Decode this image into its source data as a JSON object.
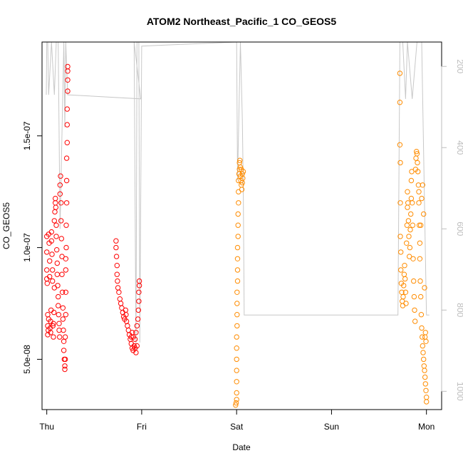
{
  "chart_data": {
    "type": "scatter",
    "title": "ATOM2 Northeast_Pacific_1 CO_GEOS5",
    "xlabel": "Date",
    "ylabel": "CO_GEOS5",
    "x_ticks": [
      "Thu",
      "Fri",
      "Sat",
      "Sun",
      "Mon"
    ],
    "xlim": [
      -0.05,
      4.16
    ],
    "ylim": [
      2.75e-08,
      1.92e-07
    ],
    "y_ticks": [
      "5.0e-08",
      "1.0e-07",
      "1.5e-07"
    ],
    "y_tick_values": [
      5e-08,
      1e-07,
      1.5e-07
    ],
    "y2_ticks": [
      "200",
      "400",
      "600",
      "800",
      "1000"
    ],
    "y2_tick_values": [
      200,
      400,
      600,
      800,
      1000
    ],
    "y2lim": [
      1045,
      140
    ],
    "grid": false,
    "colors": {
      "series1": "#ff0000",
      "series2": "#ff8c00",
      "pressure": "#c8c8c8",
      "right_axis": "#bdbdbd"
    },
    "series": [
      {
        "color": "#ff0000",
        "marker": "open-circle",
        "points": [
          [
            0.0,
            1.05e-07
          ],
          [
            0.0,
            9.8e-08
          ],
          [
            0.0,
            9e-08
          ],
          [
            0.0,
            8.6e-08
          ],
          [
            0.005,
            8.4e-08
          ],
          [
            0.01,
            7e-08
          ],
          [
            0.01,
            6.5e-08
          ],
          [
            0.01,
            6.1e-08
          ],
          [
            0.015,
            6.3e-08
          ],
          [
            0.02,
            6.8e-08
          ],
          [
            0.02,
            1.06e-07
          ],
          [
            0.025,
            1.02e-07
          ],
          [
            0.03,
            9.4e-08
          ],
          [
            0.03,
            8.7e-08
          ],
          [
            0.035,
            6.4e-08
          ],
          [
            0.04,
            6.2e-08
          ],
          [
            0.04,
            6.7e-08
          ],
          [
            0.045,
            7.2e-08
          ],
          [
            0.05,
            1.07e-07
          ],
          [
            0.05,
            1.03e-07
          ],
          [
            0.055,
            9.7e-08
          ],
          [
            0.06,
            9e-08
          ],
          [
            0.06,
            8.5e-08
          ],
          [
            0.065,
            6.5e-08
          ],
          [
            0.07,
            6e-08
          ],
          [
            0.07,
            6.6e-08
          ],
          [
            0.075,
            7.1e-08
          ],
          [
            0.08,
            8.2e-08
          ],
          [
            0.08,
            1.12e-07
          ],
          [
            0.085,
            1.16e-07
          ],
          [
            0.09,
            1.2e-07
          ],
          [
            0.09,
            1.22e-07
          ],
          [
            0.095,
            1.18e-07
          ],
          [
            0.1,
            1.1e-07
          ],
          [
            0.1,
            1.05e-07
          ],
          [
            0.105,
            9.9e-08
          ],
          [
            0.11,
            9.3e-08
          ],
          [
            0.11,
            8.8e-08
          ],
          [
            0.115,
            8.3e-08
          ],
          [
            0.12,
            7.8e-08
          ],
          [
            0.12,
            7.4e-08
          ],
          [
            0.125,
            7e-08
          ],
          [
            0.13,
            6.6e-08
          ],
          [
            0.13,
            6.3e-08
          ],
          [
            0.135,
            6e-08
          ],
          [
            0.14,
            1.24e-07
          ],
          [
            0.14,
            1.28e-07
          ],
          [
            0.145,
            1.32e-07
          ],
          [
            0.15,
            1.2e-07
          ],
          [
            0.15,
            1.12e-07
          ],
          [
            0.155,
            1.04e-07
          ],
          [
            0.16,
            9.6e-08
          ],
          [
            0.16,
            8.8e-08
          ],
          [
            0.165,
            8e-08
          ],
          [
            0.17,
            7.3e-08
          ],
          [
            0.17,
            6.8e-08
          ],
          [
            0.175,
            6.3e-08
          ],
          [
            0.18,
            5.8e-08
          ],
          [
            0.18,
            5.4e-08
          ],
          [
            0.185,
            5e-08
          ],
          [
            0.19,
            4.7e-08
          ],
          [
            0.19,
            4.55e-08
          ],
          [
            0.195,
            5e-08
          ],
          [
            0.195,
            6e-08
          ],
          [
            0.2,
            7e-08
          ],
          [
            0.2,
            8e-08
          ],
          [
            0.2,
            9e-08
          ],
          [
            0.2,
            9.5e-08
          ],
          [
            0.205,
            1e-07
          ],
          [
            0.205,
            1.1e-07
          ],
          [
            0.21,
            1.2e-07
          ],
          [
            0.21,
            1.3e-07
          ],
          [
            0.21,
            1.4e-07
          ],
          [
            0.215,
            1.47e-07
          ],
          [
            0.215,
            1.55e-07
          ],
          [
            0.215,
            1.62e-07
          ],
          [
            0.22,
            1.7e-07
          ],
          [
            0.22,
            1.75e-07
          ],
          [
            0.22,
            1.79e-07
          ],
          [
            0.22,
            1.81e-07
          ],
          [
            0.73,
            1.03e-07
          ],
          [
            0.73,
            1e-07
          ],
          [
            0.735,
            9.6e-08
          ],
          [
            0.74,
            9.2e-08
          ],
          [
            0.74,
            8.8e-08
          ],
          [
            0.745,
            8.5e-08
          ],
          [
            0.75,
            8.2e-08
          ],
          [
            0.76,
            8e-08
          ],
          [
            0.77,
            7.7e-08
          ],
          [
            0.78,
            7.5e-08
          ],
          [
            0.79,
            7.3e-08
          ],
          [
            0.8,
            7.1e-08
          ],
          [
            0.81,
            6.9e-08
          ],
          [
            0.82,
            6.8e-08
          ],
          [
            0.83,
            7.2e-08
          ],
          [
            0.835,
            7e-08
          ],
          [
            0.84,
            6.7e-08
          ],
          [
            0.85,
            6.5e-08
          ],
          [
            0.86,
            6.3e-08
          ],
          [
            0.87,
            6.1e-08
          ],
          [
            0.88,
            5.9e-08
          ],
          [
            0.89,
            5.7e-08
          ],
          [
            0.9,
            5.5e-08
          ],
          [
            0.91,
            5.4e-08
          ],
          [
            0.92,
            5.6e-08
          ],
          [
            0.93,
            5.9e-08
          ],
          [
            0.94,
            6.2e-08
          ],
          [
            0.95,
            6.5e-08
          ],
          [
            0.96,
            6.8e-08
          ],
          [
            0.965,
            7.2e-08
          ],
          [
            0.97,
            7.6e-08
          ],
          [
            0.97,
            8e-08
          ],
          [
            0.975,
            8.3e-08
          ],
          [
            0.975,
            8.5e-08
          ],
          [
            0.89,
            6e-08
          ],
          [
            0.9,
            6.2e-08
          ],
          [
            0.91,
            6e-08
          ],
          [
            0.93,
            5.5e-08
          ],
          [
            0.94,
            5.3e-08
          ],
          [
            0.95,
            5.6e-08
          ]
        ]
      },
      {
        "color": "#ff8c00",
        "marker": "open-circle",
        "points": [
          [
            1.99,
            2.95e-08
          ],
          [
            1.995,
            3.05e-08
          ],
          [
            2.0,
            3.2e-08
          ],
          [
            2.0,
            3.5e-08
          ],
          [
            2.0,
            4e-08
          ],
          [
            2.0,
            4.5e-08
          ],
          [
            2.0,
            5e-08
          ],
          [
            2.0,
            5.5e-08
          ],
          [
            2.0,
            6e-08
          ],
          [
            2.005,
            6.5e-08
          ],
          [
            2.005,
            7e-08
          ],
          [
            2.005,
            7.5e-08
          ],
          [
            2.005,
            8e-08
          ],
          [
            2.01,
            8.5e-08
          ],
          [
            2.01,
            9e-08
          ],
          [
            2.01,
            9.5e-08
          ],
          [
            2.01,
            1e-07
          ],
          [
            2.015,
            1.05e-07
          ],
          [
            2.015,
            1.1e-07
          ],
          [
            2.015,
            1.15e-07
          ],
          [
            2.02,
            1.2e-07
          ],
          [
            2.02,
            1.25e-07
          ],
          [
            2.02,
            1.3e-07
          ],
          [
            2.025,
            1.33e-07
          ],
          [
            2.03,
            1.35e-07
          ],
          [
            2.03,
            1.38e-07
          ],
          [
            2.035,
            1.39e-07
          ],
          [
            2.04,
            1.36e-07
          ],
          [
            2.04,
            1.32e-07
          ],
          [
            2.045,
            1.3e-07
          ],
          [
            2.05,
            1.35e-07
          ],
          [
            2.05,
            1.28e-07
          ],
          [
            2.055,
            1.26e-07
          ],
          [
            2.06,
            1.33e-07
          ],
          [
            2.06,
            1.29e-07
          ],
          [
            2.065,
            1.31e-07
          ],
          [
            2.07,
            1.34e-07
          ],
          [
            3.72,
            1.78e-07
          ],
          [
            3.72,
            1.65e-07
          ],
          [
            3.72,
            1.46e-07
          ],
          [
            3.725,
            1.38e-07
          ],
          [
            3.725,
            1.2e-07
          ],
          [
            3.725,
            1.05e-07
          ],
          [
            3.73,
            9.8e-08
          ],
          [
            3.73,
            9e-08
          ],
          [
            3.735,
            8.4e-08
          ],
          [
            3.74,
            8e-08
          ],
          [
            3.745,
            7.6e-08
          ],
          [
            3.75,
            7.4e-08
          ],
          [
            3.755,
            7.8e-08
          ],
          [
            3.76,
            8.3e-08
          ],
          [
            3.765,
            8.8e-08
          ],
          [
            3.77,
            9.2e-08
          ],
          [
            3.775,
            8.6e-08
          ],
          [
            3.78,
            8e-08
          ],
          [
            3.785,
            7.5e-08
          ],
          [
            3.79,
            1.02e-07
          ],
          [
            3.795,
            1.1e-07
          ],
          [
            3.8,
            1.18e-07
          ],
          [
            3.8,
            1.25e-07
          ],
          [
            3.805,
            1.2e-07
          ],
          [
            3.81,
            1.12e-07
          ],
          [
            3.815,
            1.05e-07
          ],
          [
            3.82,
            9.6e-08
          ],
          [
            3.825,
            1e-07
          ],
          [
            3.83,
            1.08e-07
          ],
          [
            3.835,
            1.15e-07
          ],
          [
            3.84,
            1.22e-07
          ],
          [
            3.84,
            1.3e-07
          ],
          [
            3.845,
            1.34e-07
          ],
          [
            3.85,
            1.2e-07
          ],
          [
            3.855,
            1.1e-07
          ],
          [
            3.86,
            9.5e-08
          ],
          [
            3.865,
            8.5e-08
          ],
          [
            3.87,
            7.8e-08
          ],
          [
            3.875,
            7.2e-08
          ],
          [
            3.88,
            6.7e-08
          ],
          [
            3.885,
            1.35e-07
          ],
          [
            3.89,
            1.4e-07
          ],
          [
            3.895,
            1.43e-07
          ],
          [
            3.9,
            1.42e-07
          ],
          [
            3.905,
            1.38e-07
          ],
          [
            3.91,
            1.34e-07
          ],
          [
            3.915,
            1.28e-07
          ],
          [
            3.92,
            1.2e-07
          ],
          [
            3.925,
            1.1e-07
          ],
          [
            3.93,
            9.5e-08
          ],
          [
            3.935,
            8.5e-08
          ],
          [
            3.94,
            7.8e-08
          ],
          [
            3.945,
            7e-08
          ],
          [
            3.95,
            6.4e-08
          ],
          [
            3.955,
            6e-08
          ],
          [
            3.96,
            5.6e-08
          ],
          [
            3.965,
            5.3e-08
          ],
          [
            3.97,
            5e-08
          ],
          [
            3.975,
            4.7e-08
          ],
          [
            3.98,
            4.5e-08
          ],
          [
            3.985,
            4.2e-08
          ],
          [
            3.99,
            3.9e-08
          ],
          [
            3.995,
            3.6e-08
          ],
          [
            4.0,
            3.3e-08
          ],
          [
            4.0,
            3.1e-08
          ],
          [
            3.99,
            6.2e-08
          ],
          [
            3.995,
            5.8e-08
          ],
          [
            3.985,
            6e-08
          ],
          [
            3.98,
            8.2e-08
          ],
          [
            3.97,
            1.15e-07
          ],
          [
            3.96,
            1.28e-07
          ],
          [
            3.95,
            1.22e-07
          ],
          [
            3.94,
            1.1e-07
          ],
          [
            3.93,
            1.02e-07
          ],
          [
            3.92,
            1.25e-07
          ]
        ]
      }
    ],
    "pressure_line": {
      "color": "#c8c8c8",
      "points": [
        [
          -0.005,
          270
        ],
        [
          0.0,
          140
        ],
        [
          0.01,
          140
        ],
        [
          0.02,
          270
        ],
        [
          0.05,
          140
        ],
        [
          0.08,
          270
        ],
        [
          0.1,
          140
        ],
        [
          0.12,
          140
        ],
        [
          0.14,
          600
        ],
        [
          0.18,
          140
        ],
        [
          0.19,
          350
        ],
        [
          0.2,
          140
        ],
        [
          0.22,
          270
        ],
        [
          0.99,
          280
        ],
        [
          0.92,
          140
        ],
        [
          0.94,
          900
        ],
        [
          0.95,
          140
        ],
        [
          0.97,
          140
        ],
        [
          0.98,
          880
        ],
        [
          1.0,
          150
        ],
        [
          2.0,
          140
        ],
        [
          2.01,
          480
        ],
        [
          2.04,
          140
        ],
        [
          2.06,
          330
        ],
        [
          2.07,
          490
        ],
        [
          2.08,
          812
        ],
        [
          3.7,
          812
        ],
        [
          3.72,
          140
        ],
        [
          3.75,
          140
        ],
        [
          3.78,
          280
        ],
        [
          3.8,
          140
        ],
        [
          3.85,
          280
        ],
        [
          3.9,
          140
        ],
        [
          3.95,
          140
        ],
        [
          4.0,
          812
        ],
        [
          4.03,
          812
        ]
      ]
    }
  }
}
